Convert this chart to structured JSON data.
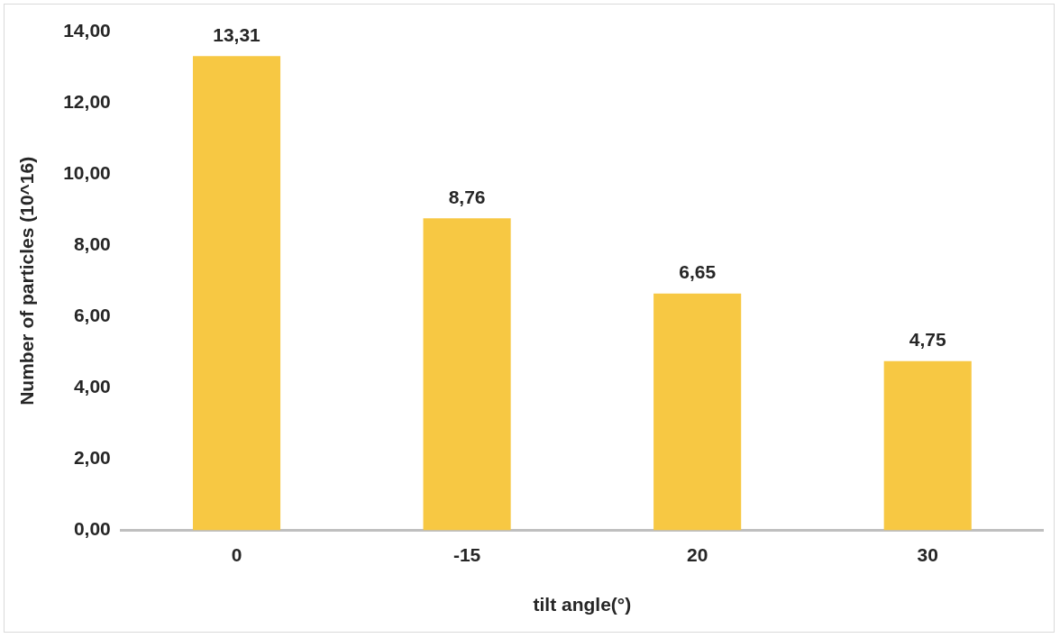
{
  "chart_data": {
    "type": "bar",
    "xlabel": "tilt angle(°)",
    "ylabel": "Number of particles (10^16)",
    "categories": [
      "0",
      "-15",
      "20",
      "30"
    ],
    "values": [
      13.31,
      8.76,
      6.65,
      4.75
    ],
    "value_labels": [
      "13,31",
      "8,76",
      "6,65",
      "4,75"
    ],
    "color": "#f7c843",
    "ylim": [
      0,
      14
    ],
    "yticks": [
      {
        "value": 0,
        "label": "0,00"
      },
      {
        "value": 2,
        "label": "2,00"
      },
      {
        "value": 4,
        "label": "4,00"
      },
      {
        "value": 6,
        "label": "6,00"
      },
      {
        "value": 8,
        "label": "8,00"
      },
      {
        "value": 10,
        "label": "10,00"
      },
      {
        "value": 12,
        "label": "12,00"
      },
      {
        "value": 14,
        "label": "14,00"
      }
    ],
    "grid": false,
    "legend": false
  }
}
